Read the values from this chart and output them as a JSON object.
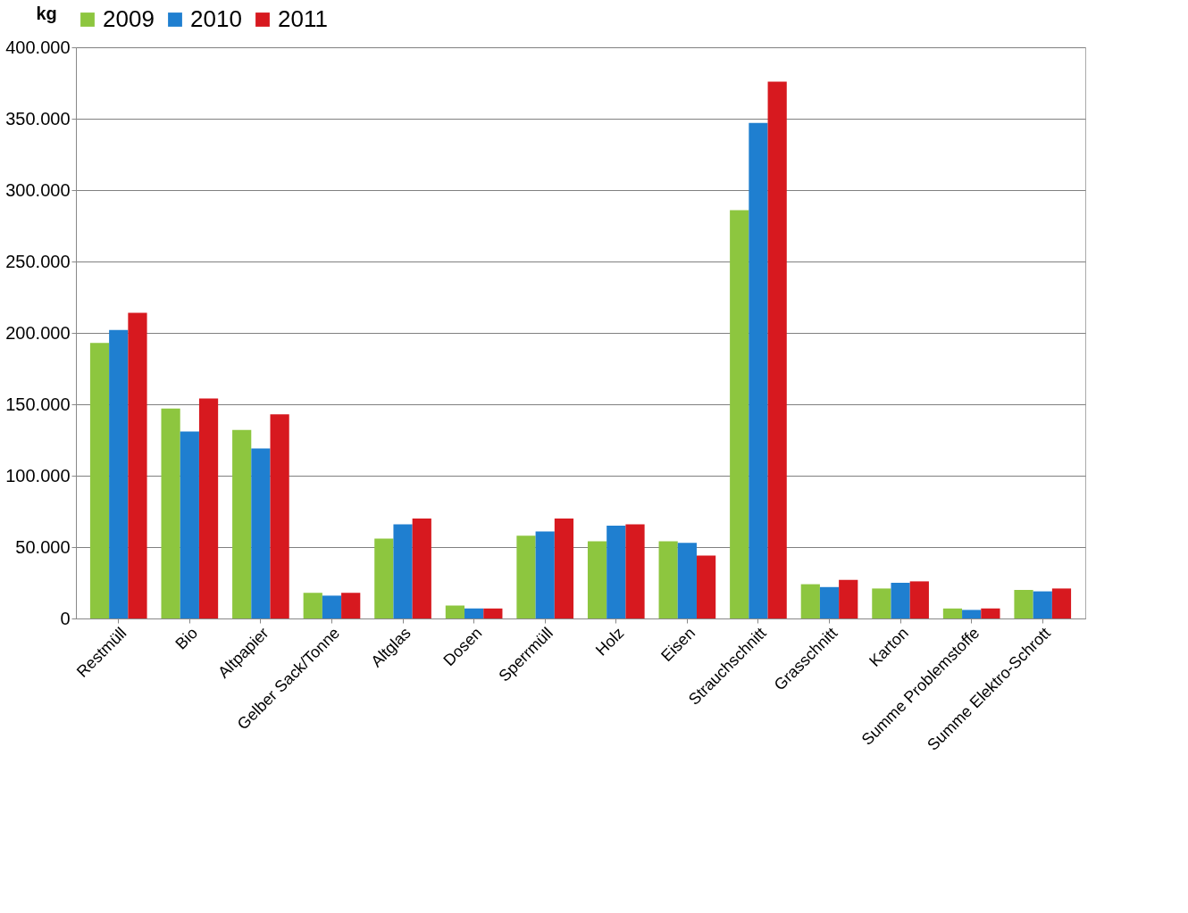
{
  "chart_data": {
    "type": "bar",
    "ylabel": "kg",
    "categories": [
      "Restmüll",
      "Bio",
      "Altpapier",
      "Gelber Sack/Tonne",
      "Altglas",
      "Dosen",
      "Sperrmüll",
      "Holz",
      "Eisen",
      "Strauchschnitt",
      "Grasschnitt",
      "Karton",
      "Summe Problemstoffe",
      "Summe Elektro-Schrott"
    ],
    "series": [
      {
        "name": "2009",
        "color": "#8dc63f",
        "values": [
          193000,
          147000,
          132000,
          18000,
          56000,
          9000,
          58000,
          54000,
          54000,
          286000,
          24000,
          21000,
          7000,
          20000
        ]
      },
      {
        "name": "2010",
        "color": "#1f7fd0",
        "values": [
          202000,
          131000,
          119000,
          16000,
          66000,
          7000,
          61000,
          65000,
          53000,
          347000,
          22000,
          25000,
          6000,
          19000
        ]
      },
      {
        "name": "2011",
        "color": "#d7191f",
        "values": [
          214000,
          154000,
          143000,
          18000,
          70000,
          7000,
          70000,
          66000,
          44000,
          376000,
          27000,
          26000,
          7000,
          21000
        ]
      }
    ],
    "ylim": [
      0,
      400000
    ],
    "yticks": [
      {
        "value": 0,
        "label": "0"
      },
      {
        "value": 50000,
        "label": "50.000"
      },
      {
        "value": 100000,
        "label": "100.000"
      },
      {
        "value": 150000,
        "label": "150.000"
      },
      {
        "value": 200000,
        "label": "200.000"
      },
      {
        "value": 250000,
        "label": "250.000"
      },
      {
        "value": 300000,
        "label": "300.000"
      },
      {
        "value": 350000,
        "label": "350.000"
      },
      {
        "value": 400000,
        "label": "400.000"
      }
    ],
    "grid": "y",
    "legend": "top"
  }
}
